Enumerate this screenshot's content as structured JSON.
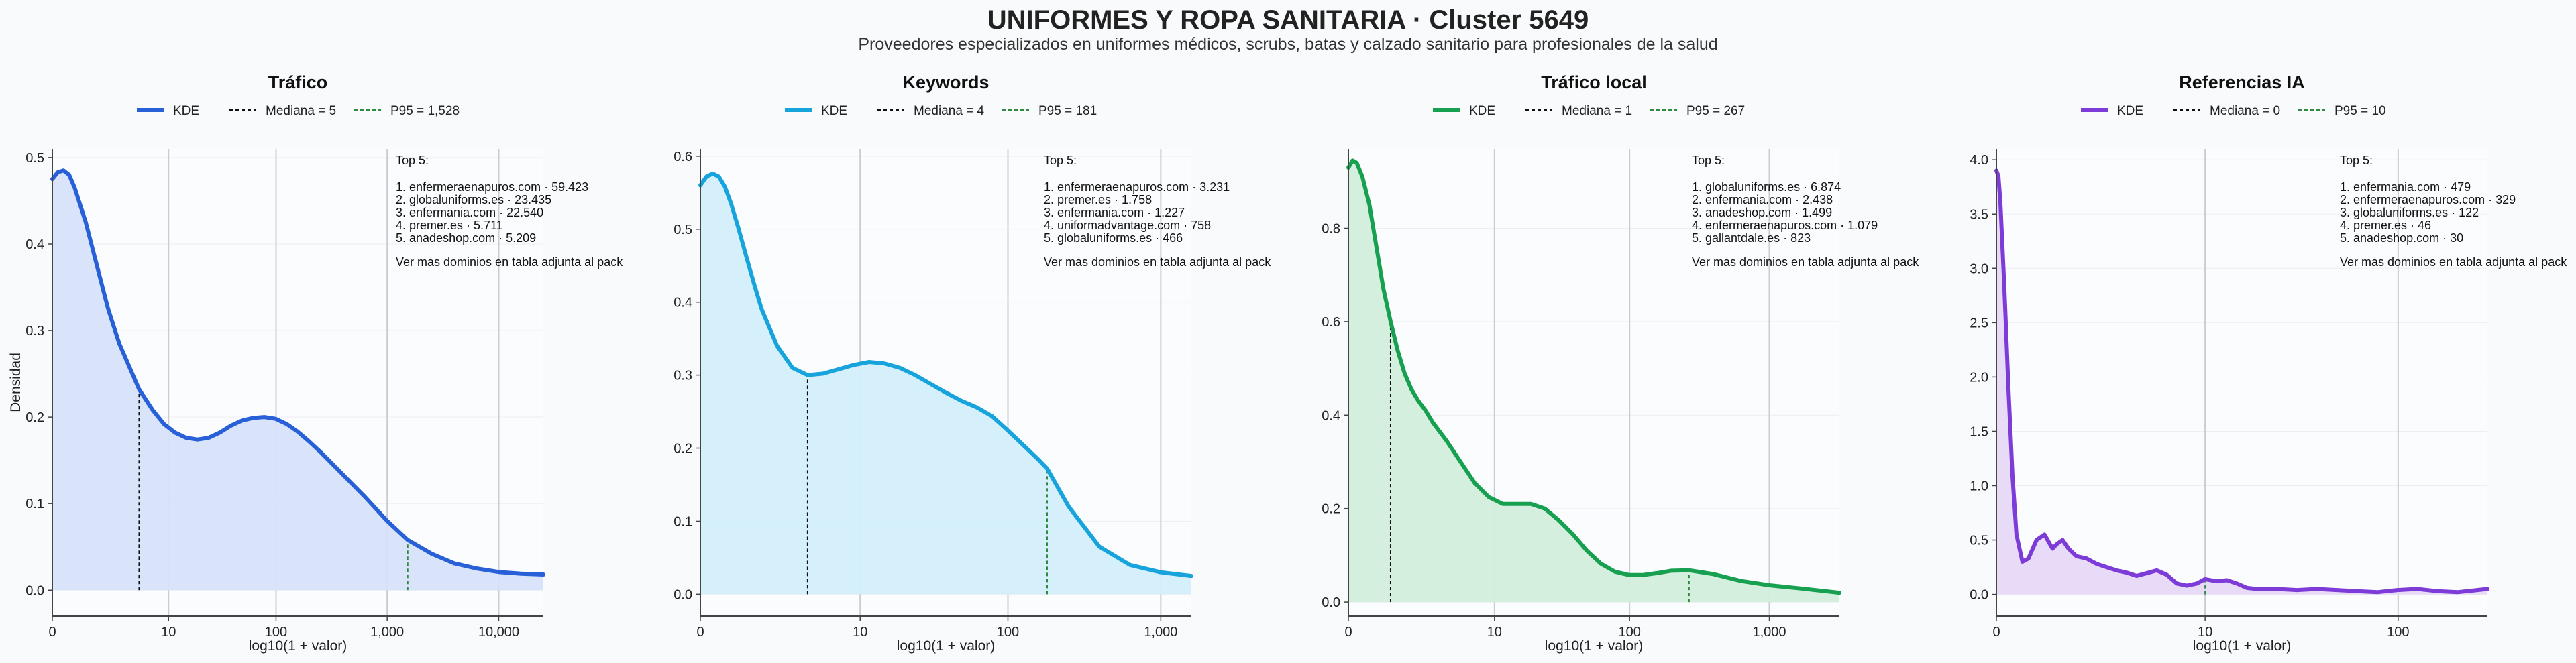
{
  "title": "UNIFORMES Y ROPA SANITARIA · Cluster 5649",
  "subtitle": "Proveedores especializados en uniformes médicos, scrubs, batas y calzado sanitario para profesionales de la salud",
  "shared": {
    "ylabel": "Densidad",
    "xlabel": "log10(1 + valor)"
  },
  "chart_data": [
    {
      "type": "area",
      "title": "Tráfico",
      "color": "#2860d8",
      "fill": "#d7e1f9",
      "legend": [
        "KDE",
        "Mediana = 5",
        "P95 = 1,528"
      ],
      "median": 5,
      "p95": 1528,
      "xlim_log": [
        0,
        4.4
      ],
      "ylim": [
        -0.03,
        0.51
      ],
      "xticks": [
        {
          "v": 0,
          "label": "0"
        },
        {
          "v": 10,
          "label": "10"
        },
        {
          "v": 100,
          "label": "100"
        },
        {
          "v": 1000,
          "label": "1,000"
        },
        {
          "v": 10000,
          "label": "10,000"
        }
      ],
      "yticks": [
        {
          "v": 0,
          "label": "0.0"
        },
        {
          "v": 0.1,
          "label": "0.1"
        },
        {
          "v": 0.2,
          "label": "0.2"
        },
        {
          "v": 0.3,
          "label": "0.3"
        },
        {
          "v": 0.4,
          "label": "0.4"
        },
        {
          "v": 0.5,
          "label": "0.5"
        }
      ],
      "x": [
        0,
        0.05,
        0.1,
        0.15,
        0.2,
        0.3,
        0.4,
        0.5,
        0.6,
        0.7,
        0.778,
        0.9,
        1.0,
        1.1,
        1.2,
        1.3,
        1.4,
        1.5,
        1.6,
        1.7,
        1.8,
        1.9,
        2.0,
        2.1,
        2.2,
        2.3,
        2.4,
        2.5,
        2.6,
        2.8,
        3.0,
        3.184,
        3.4,
        3.6,
        3.8,
        4.0,
        4.2,
        4.4
      ],
      "y": [
        0.475,
        0.483,
        0.485,
        0.48,
        0.465,
        0.425,
        0.375,
        0.325,
        0.285,
        0.255,
        0.232,
        0.208,
        0.192,
        0.182,
        0.176,
        0.174,
        0.176,
        0.182,
        0.19,
        0.196,
        0.199,
        0.2,
        0.198,
        0.192,
        0.183,
        0.172,
        0.16,
        0.147,
        0.134,
        0.108,
        0.08,
        0.058,
        0.042,
        0.031,
        0.025,
        0.021,
        0.019,
        0.018
      ],
      "top5_title": "Top 5:",
      "top5": [
        "1. enfermeraenapuros.com · 59.423",
        "2. globaluniforms.es · 23.435",
        "3. enfermania.com · 22.540",
        "4. premer.es · 5.711",
        "5. anadeshop.com · 5.209"
      ],
      "top5_note": "Ver mas dominios en tabla adjunta al pack"
    },
    {
      "type": "area",
      "title": "Keywords",
      "color": "#17a4dc",
      "fill": "#d3effb",
      "legend": [
        "KDE",
        "Mediana = 4",
        "P95 = 181"
      ],
      "median": 4,
      "p95": 181,
      "xlim_log": [
        0,
        3.2
      ],
      "ylim": [
        -0.03,
        0.61
      ],
      "xticks": [
        {
          "v": 0,
          "label": "0"
        },
        {
          "v": 10,
          "label": "10"
        },
        {
          "v": 100,
          "label": "100"
        },
        {
          "v": 1000,
          "label": "1,000"
        }
      ],
      "yticks": [
        {
          "v": 0,
          "label": "0.0"
        },
        {
          "v": 0.1,
          "label": "0.1"
        },
        {
          "v": 0.2,
          "label": "0.2"
        },
        {
          "v": 0.3,
          "label": "0.3"
        },
        {
          "v": 0.4,
          "label": "0.4"
        },
        {
          "v": 0.5,
          "label": "0.5"
        },
        {
          "v": 0.6,
          "label": "0.6"
        }
      ],
      "x": [
        0,
        0.04,
        0.08,
        0.12,
        0.16,
        0.2,
        0.25,
        0.3,
        0.35,
        0.4,
        0.5,
        0.6,
        0.699,
        0.8,
        0.9,
        1.0,
        1.1,
        1.2,
        1.3,
        1.4,
        1.5,
        1.6,
        1.7,
        1.8,
        1.9,
        2.0,
        2.1,
        2.2,
        2.26,
        2.4,
        2.6,
        2.8,
        3.0,
        3.2
      ],
      "y": [
        0.56,
        0.572,
        0.576,
        0.572,
        0.558,
        0.535,
        0.5,
        0.462,
        0.425,
        0.39,
        0.34,
        0.31,
        0.3,
        0.302,
        0.308,
        0.314,
        0.318,
        0.316,
        0.31,
        0.3,
        0.288,
        0.276,
        0.265,
        0.256,
        0.244,
        0.225,
        0.205,
        0.185,
        0.172,
        0.12,
        0.065,
        0.04,
        0.03,
        0.025
      ],
      "top5_title": "Top 5:",
      "top5": [
        "1. enfermeraenapuros.com · 3.231",
        "2. premer.es · 1.758",
        "3. enfermania.com · 1.227",
        "4. uniformadvantage.com · 758",
        "5. globaluniforms.es · 466"
      ],
      "top5_note": "Ver mas dominios en tabla adjunta al pack"
    },
    {
      "type": "area",
      "title": "Tráfico local",
      "color": "#16a050",
      "fill": "#d3eedc",
      "legend": [
        "KDE",
        "Mediana = 1",
        "P95 = 267"
      ],
      "median": 1,
      "p95": 267,
      "xlim_log": [
        0,
        3.5
      ],
      "ylim": [
        -0.03,
        0.97
      ],
      "xticks": [
        {
          "v": 0,
          "label": "0"
        },
        {
          "v": 10,
          "label": "10"
        },
        {
          "v": 100,
          "label": "100"
        },
        {
          "v": 1000,
          "label": "1,000"
        }
      ],
      "yticks": [
        {
          "v": 0,
          "label": "0.0"
        },
        {
          "v": 0.2,
          "label": "0.2"
        },
        {
          "v": 0.4,
          "label": "0.4"
        },
        {
          "v": 0.6,
          "label": "0.6"
        },
        {
          "v": 0.8,
          "label": "0.8"
        }
      ],
      "x": [
        0,
        0.03,
        0.06,
        0.1,
        0.15,
        0.2,
        0.25,
        0.301,
        0.35,
        0.4,
        0.45,
        0.5,
        0.55,
        0.6,
        0.7,
        0.8,
        0.9,
        1.0,
        1.1,
        1.2,
        1.3,
        1.4,
        1.5,
        1.6,
        1.7,
        1.8,
        1.9,
        2.0,
        2.1,
        2.2,
        2.3,
        2.428,
        2.6,
        2.8,
        3.0,
        3.2,
        3.5
      ],
      "y": [
        0.93,
        0.945,
        0.94,
        0.91,
        0.85,
        0.76,
        0.67,
        0.6,
        0.54,
        0.49,
        0.455,
        0.43,
        0.41,
        0.385,
        0.345,
        0.3,
        0.255,
        0.225,
        0.21,
        0.21,
        0.21,
        0.2,
        0.175,
        0.145,
        0.11,
        0.082,
        0.065,
        0.058,
        0.058,
        0.062,
        0.067,
        0.068,
        0.06,
        0.045,
        0.036,
        0.03,
        0.02
      ],
      "top5_title": "Top 5:",
      "top5": [
        "1. globaluniforms.es · 6.874",
        "2. enfermania.com · 2.438",
        "3. anadeshop.com · 1.499",
        "4. enfermeraenapuros.com · 1.079",
        "5. gallantdale.es · 823"
      ],
      "top5_note": "Ver mas dominios en tabla adjunta al pack"
    },
    {
      "type": "area",
      "title": "Referencias IA",
      "color": "#7d3bd8",
      "fill": "#e7d9f8",
      "legend": [
        "KDE",
        "Mediana = 0",
        "P95 = 10"
      ],
      "median": 0,
      "p95": 10,
      "xlim_log": [
        0,
        2.45
      ],
      "ylim": [
        -0.2,
        4.1
      ],
      "xticks": [
        {
          "v": 0,
          "label": "0"
        },
        {
          "v": 10,
          "label": "10"
        },
        {
          "v": 100,
          "label": "100"
        }
      ],
      "yticks": [
        {
          "v": 0,
          "label": "0.0"
        },
        {
          "v": 0.5,
          "label": "0.5"
        },
        {
          "v": 1,
          "label": "1.0"
        },
        {
          "v": 1.5,
          "label": "1.5"
        },
        {
          "v": 2,
          "label": "2.0"
        },
        {
          "v": 2.5,
          "label": "2.5"
        },
        {
          "v": 3,
          "label": "3.0"
        },
        {
          "v": 3.5,
          "label": "3.5"
        },
        {
          "v": 4,
          "label": "4.0"
        }
      ],
      "x": [
        0,
        0.01,
        0.02,
        0.04,
        0.06,
        0.08,
        0.1,
        0.13,
        0.16,
        0.2,
        0.24,
        0.28,
        0.3,
        0.33,
        0.36,
        0.4,
        0.45,
        0.5,
        0.55,
        0.6,
        0.65,
        0.7,
        0.76,
        0.8,
        0.85,
        0.9,
        0.95,
        1.0,
        1.041,
        1.1,
        1.15,
        1.2,
        1.25,
        1.3,
        1.4,
        1.5,
        1.6,
        1.7,
        1.8,
        1.9,
        2.0,
        2.1,
        2.2,
        2.3,
        2.45
      ],
      "y": [
        3.9,
        3.85,
        3.6,
        2.8,
        1.9,
        1.1,
        0.55,
        0.3,
        0.33,
        0.5,
        0.55,
        0.42,
        0.46,
        0.5,
        0.42,
        0.35,
        0.33,
        0.28,
        0.25,
        0.22,
        0.2,
        0.17,
        0.2,
        0.22,
        0.18,
        0.1,
        0.08,
        0.1,
        0.14,
        0.12,
        0.13,
        0.1,
        0.06,
        0.05,
        0.05,
        0.04,
        0.05,
        0.04,
        0.03,
        0.02,
        0.04,
        0.05,
        0.03,
        0.02,
        0.05
      ],
      "top5_title": "Top 5:",
      "top5": [
        "1. enfermania.com · 479",
        "2. enfermeraenapuros.com · 329",
        "3. globaluniforms.es · 122",
        "4. premer.es · 46",
        "5. anadeshop.com · 30"
      ],
      "top5_note": "Ver mas dominios en tabla adjunta al pack"
    }
  ]
}
